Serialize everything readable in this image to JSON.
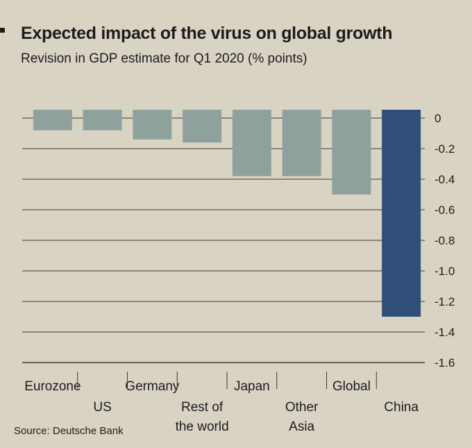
{
  "chart_data": {
    "type": "bar",
    "title": "Expected impact of the virus on global growth",
    "subtitle": "Revision in GDP estimate for Q1 2020 (% points)",
    "categories": [
      "Eurozone",
      "US",
      "Germany",
      "Rest of the world",
      "Japan",
      "Other Asia",
      "Global",
      "China"
    ],
    "category_lines": [
      [
        "Eurozone"
      ],
      [
        "US"
      ],
      [
        "Germany"
      ],
      [
        "Rest of",
        "the world"
      ],
      [
        "Japan"
      ],
      [
        "Other",
        "Asia"
      ],
      [
        "Global"
      ],
      [
        "China"
      ]
    ],
    "values": [
      -0.08,
      -0.08,
      -0.14,
      -0.16,
      -0.38,
      -0.38,
      -0.5,
      -1.3
    ],
    "ylim": [
      -1.6,
      0
    ],
    "yticks": [
      0,
      -0.2,
      -0.4,
      -0.6,
      -0.8,
      -1.0,
      -1.2,
      -1.4,
      -1.6
    ],
    "ytick_labels": [
      "0",
      "-0.2",
      "-0.4",
      "-0.6",
      "-0.8",
      "-1.0",
      "-1.2",
      "-1.4",
      "-1.6"
    ],
    "highlight_category": "China",
    "xlabel": "",
    "ylabel": "",
    "grid": true,
    "legend": "none",
    "source": "Source: Deutsche Bank"
  },
  "colors": {
    "background": "#d9d3c4",
    "bar": "#8fa19c",
    "highlight_bar": "#2f4f78",
    "grid": "#3a3a3a",
    "text": "#1c1c1c"
  }
}
